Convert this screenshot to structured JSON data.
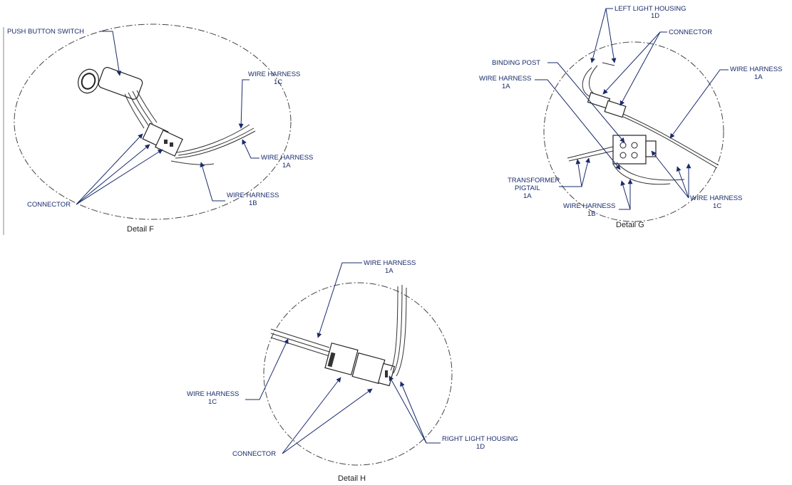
{
  "detail_f": {
    "caption": "Detail F",
    "push_button_switch": "PUSH BUTTON SWITCH",
    "wire_harness_1c": [
      "WIRE HARNESS",
      "1C"
    ],
    "wire_harness_1a": [
      "WIRE HARNESS",
      "1A"
    ],
    "wire_harness_1b": [
      "WIRE HARNESS",
      "1B"
    ],
    "connector": "CONNECTOR"
  },
  "detail_g": {
    "caption": "Detail G",
    "left_light_housing": [
      "LEFT LIGHT HOUSING",
      "1D"
    ],
    "connector": "CONNECTOR",
    "binding_post": "BINDING POST",
    "wire_harness_1a_left": [
      "WIRE HARNESS",
      "1A"
    ],
    "wire_harness_1a_right": [
      "WIRE HARNESS",
      "1A"
    ],
    "transformer_pigtail": [
      "TRANSFORMER",
      "PIGTAIL",
      "1A"
    ],
    "wire_harness_1b": [
      "WIRE HARNESS",
      "1B"
    ],
    "wire_harness_1c": [
      "WIRE HARNESS",
      "1C"
    ]
  },
  "detail_h": {
    "caption": "Detail H",
    "wire_harness_1a": [
      "WIRE HARNESS",
      "1A"
    ],
    "wire_harness_1c": [
      "WIRE HARNESS",
      "1C"
    ],
    "connector": "CONNECTOR",
    "right_light_housing": [
      "RIGHT LIGHT HOUSING",
      "1D"
    ]
  }
}
